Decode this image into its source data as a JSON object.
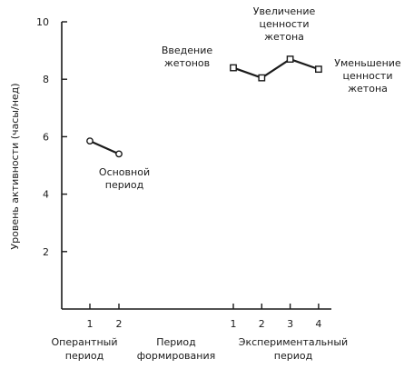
{
  "chart_data": {
    "type": "line",
    "title": "",
    "ylabel": "Уровень активности (часы/нед)",
    "ylim": [
      0,
      10
    ],
    "yticks": [
      2,
      4,
      6,
      8,
      10
    ],
    "grid": false,
    "phases": [
      {
        "name": [
          "Оперантный",
          "период"
        ],
        "xticks": [
          "1",
          "2"
        ]
      },
      {
        "name": [
          "Период",
          "формирования"
        ],
        "xticks": []
      },
      {
        "name": [
          "Экспериментальный",
          "период"
        ],
        "xticks": [
          "1",
          "2",
          "3",
          "4"
        ]
      }
    ],
    "series": [
      {
        "marker": "circle",
        "phase": 0,
        "x": [
          1,
          2
        ],
        "y": [
          5.85,
          5.4
        ]
      },
      {
        "marker": "square",
        "phase": 2,
        "x": [
          1,
          2,
          3,
          4
        ],
        "y": [
          8.4,
          8.05,
          8.7,
          8.35
        ]
      }
    ],
    "annotations": [
      {
        "id": "base",
        "lines": [
          "Основной",
          "период"
        ]
      },
      {
        "id": "intro",
        "lines": [
          "Введение",
          "жетонов"
        ]
      },
      {
        "id": "increase",
        "lines": [
          "Увеличение",
          "ценности",
          "жетона"
        ]
      },
      {
        "id": "decrease",
        "lines": [
          "Уменьшение",
          "ценности",
          "жетона"
        ]
      }
    ],
    "colors": {
      "line": "#1a1a1a",
      "marker_fill": "#ffffff"
    }
  }
}
